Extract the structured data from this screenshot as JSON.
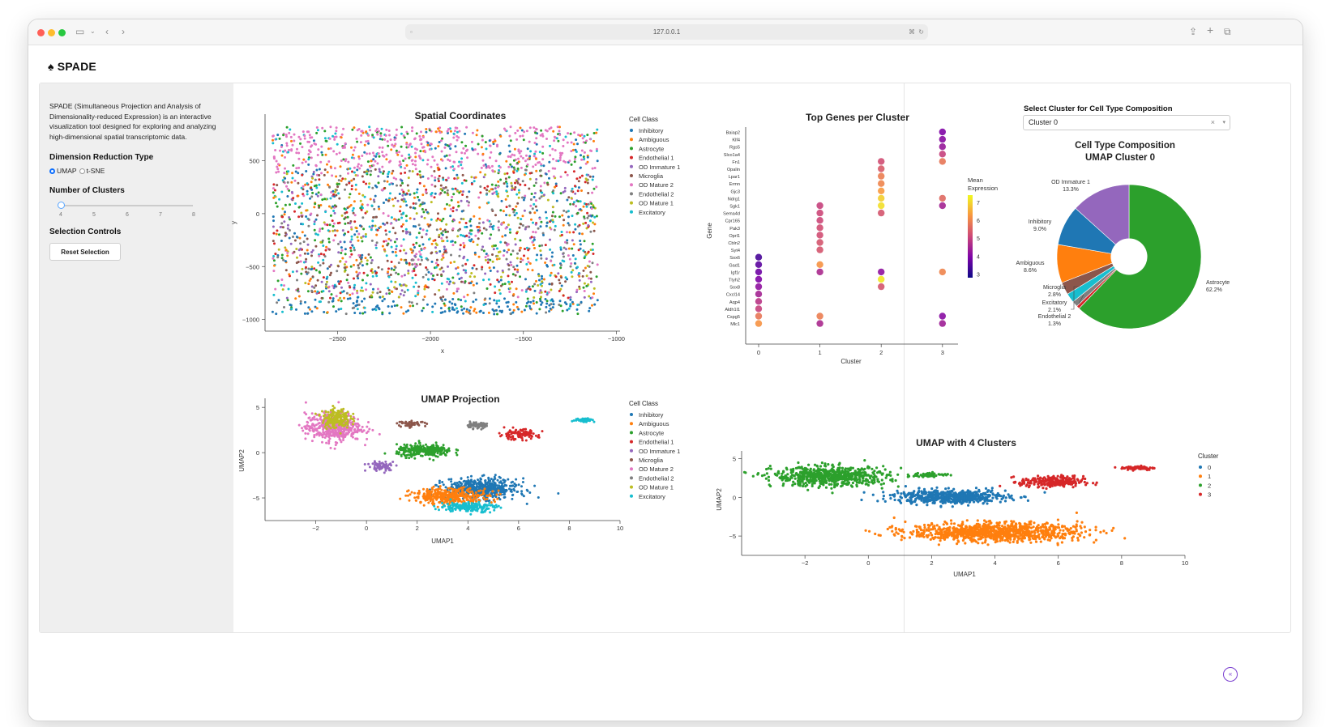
{
  "browser": {
    "url": "127.0.0.1"
  },
  "app": {
    "title": "SPADE"
  },
  "sidebar": {
    "description": "SPADE (Simultaneous Projection and Analysis of Dimensionality-reduced Expression) is an interactive visualization tool designed for exploring and analyzing high-dimensional spatial transcriptomic data.",
    "dim_reduction_title": "Dimension Reduction Type",
    "dim_options": [
      "UMAP",
      "t-SNE"
    ],
    "dim_selected": "UMAP",
    "clusters_title": "Number of Clusters",
    "clusters_ticks": [
      "4",
      "5",
      "6",
      "7",
      "8"
    ],
    "clusters_value": 4,
    "selection_title": "Selection Controls",
    "reset_label": "Reset Selection"
  },
  "cluster_select": {
    "label": "Select Cluster for Cell Type Composition",
    "value": "Cluster 0",
    "clear": "×",
    "chevron": "▾"
  },
  "colors": {
    "Inhibitory": "#1f77b4",
    "Ambiguous": "#ff7f0e",
    "Astrocyte": "#2ca02c",
    "Endothelial 1": "#d62728",
    "OD Immature 1": "#9467bd",
    "Microglia": "#8c564b",
    "OD Mature 2": "#e377c2",
    "Endothelial 2": "#7f7f7f",
    "OD Mature 1": "#bcbd22",
    "Excitatory": "#17becf"
  },
  "chart_data": [
    {
      "id": "spatial",
      "type": "scatter",
      "title": "Spatial Coordinates",
      "xlabel": "x",
      "ylabel": "y",
      "xlim": [
        -2890,
        -980
      ],
      "ylim": [
        -1110,
        940
      ],
      "xticks": [
        -2500,
        -2000,
        -1500,
        -1000
      ],
      "yticks": [
        500,
        0,
        -500,
        -1000
      ],
      "legend_title": "Cell Class",
      "legend": [
        "Inhibitory",
        "Ambiguous",
        "Astrocyte",
        "Endothelial 1",
        "OD Immature 1",
        "Microglia",
        "OD Mature 2",
        "Endothelial 2",
        "OD Mature 1",
        "Excitatory"
      ],
      "legend_position": "right",
      "points": "≈5000 points spread over x -2850 to -1100, y -950 to 820"
    },
    {
      "id": "umap_class",
      "type": "scatter",
      "title": "UMAP Projection",
      "xlabel": "UMAP1",
      "ylabel": "UMAP2",
      "xlim": [
        -4,
        10
      ],
      "ylim": [
        -7.5,
        6
      ],
      "xticks": [
        -2,
        0,
        2,
        4,
        6,
        8,
        10
      ],
      "yticks": [
        5,
        0,
        -5
      ],
      "legend_title": "Cell Class",
      "legend": [
        "Inhibitory",
        "Ambiguous",
        "Astrocyte",
        "Endothelial 1",
        "OD Immature 1",
        "Microglia",
        "OD Mature 2",
        "Endothelial 2",
        "OD Mature 1",
        "Excitatory"
      ],
      "legend_position": "right"
    },
    {
      "id": "dotplot",
      "type": "scatter",
      "title": "Top Genes per Cluster",
      "xlabel": "Cluster",
      "ylabel": "Gene",
      "categories_x": [
        "0",
        "1",
        "2",
        "3"
      ],
      "genes": [
        "Baiap2",
        "Klf4",
        "Rgs5",
        "Slco1a4",
        "Fn1",
        "Opalin",
        "Lpar1",
        "Ermn",
        "Gjc3",
        "Ndrg1",
        "Sgk1",
        "Sema4d",
        "Cpr165",
        "Pak3",
        "Oprl1",
        "Cbln2",
        "Syt4",
        "Sox6",
        "Gad1",
        "Igf1r",
        "Ttyh2",
        "Sox8",
        "Cxcl14",
        "Aqp4",
        "Aldh1l1",
        "Cspg5",
        "Mlc1"
      ],
      "colorbar_title": "Mean Expression",
      "colorbar_ticks": [
        7,
        6,
        5,
        4,
        3
      ],
      "colorbar_range": [
        2.8,
        7.4
      ],
      "points": [
        {
          "cluster": 0,
          "gene": "Sox6",
          "value": 3.4
        },
        {
          "cluster": 0,
          "gene": "Gad1",
          "value": 3.6
        },
        {
          "cluster": 0,
          "gene": "Igf1r",
          "value": 3.8
        },
        {
          "cluster": 0,
          "gene": "Ttyh2",
          "value": 4.0
        },
        {
          "cluster": 0,
          "gene": "Sox8",
          "value": 4.2
        },
        {
          "cluster": 0,
          "gene": "Cxcl14",
          "value": 4.5
        },
        {
          "cluster": 0,
          "gene": "Aqp4",
          "value": 4.8
        },
        {
          "cluster": 0,
          "gene": "Aldh1l1",
          "value": 5.0
        },
        {
          "cluster": 0,
          "gene": "Cspg5",
          "value": 5.8
        },
        {
          "cluster": 0,
          "gene": "Mlc1",
          "value": 6.2
        },
        {
          "cluster": 1,
          "gene": "Sgk1",
          "value": 5.0
        },
        {
          "cluster": 1,
          "gene": "Sema4d",
          "value": 5.1
        },
        {
          "cluster": 1,
          "gene": "Cpr165",
          "value": 5.1
        },
        {
          "cluster": 1,
          "gene": "Pak3",
          "value": 5.2
        },
        {
          "cluster": 1,
          "gene": "Oprl1",
          "value": 5.2
        },
        {
          "cluster": 1,
          "gene": "Cbln2",
          "value": 5.3
        },
        {
          "cluster": 1,
          "gene": "Syt4",
          "value": 5.3
        },
        {
          "cluster": 1,
          "gene": "Gad1",
          "value": 6.2
        },
        {
          "cluster": 1,
          "gene": "Igf1r",
          "value": 4.6
        },
        {
          "cluster": 1,
          "gene": "Cspg5",
          "value": 5.9
        },
        {
          "cluster": 1,
          "gene": "Mlc1",
          "value": 4.6
        },
        {
          "cluster": 2,
          "gene": "Fn1",
          "value": 5.2
        },
        {
          "cluster": 2,
          "gene": "Opalin",
          "value": 5.4
        },
        {
          "cluster": 2,
          "gene": "Lpar1",
          "value": 5.9
        },
        {
          "cluster": 2,
          "gene": "Ermn",
          "value": 6.0
        },
        {
          "cluster": 2,
          "gene": "Gjc3",
          "value": 6.3
        },
        {
          "cluster": 2,
          "gene": "Ndrg1",
          "value": 6.9
        },
        {
          "cluster": 2,
          "gene": "Sgk1",
          "value": 7.1
        },
        {
          "cluster": 2,
          "gene": "Sema4d",
          "value": 5.3
        },
        {
          "cluster": 2,
          "gene": "Igf1r",
          "value": 4.2
        },
        {
          "cluster": 2,
          "gene": "Ttyh2",
          "value": 7.2
        },
        {
          "cluster": 2,
          "gene": "Sox8",
          "value": 5.3
        },
        {
          "cluster": 3,
          "gene": "Baiap2",
          "value": 4.0
        },
        {
          "cluster": 3,
          "gene": "Klf4",
          "value": 4.1
        },
        {
          "cluster": 3,
          "gene": "Rgs5",
          "value": 4.3
        },
        {
          "cluster": 3,
          "gene": "Slco1a4",
          "value": 5.0
        },
        {
          "cluster": 3,
          "gene": "Fn1",
          "value": 5.8
        },
        {
          "cluster": 3,
          "gene": "Ndrg1",
          "value": 5.6
        },
        {
          "cluster": 3,
          "gene": "Sgk1",
          "value": 4.5
        },
        {
          "cluster": 3,
          "gene": "Igf1r",
          "value": 6.0
        },
        {
          "cluster": 3,
          "gene": "Cspg5",
          "value": 4.1
        },
        {
          "cluster": 3,
          "gene": "Mlc1",
          "value": 4.4
        }
      ]
    },
    {
      "id": "pie",
      "type": "pie",
      "title": "Cell Type Composition",
      "subtitle": "UMAP Cluster 0",
      "hole": 0.25,
      "slices": [
        {
          "label": "Astrocyte",
          "value": 62.2,
          "text": "62.2%"
        },
        {
          "label": "Endothelial 1",
          "value": 0.7,
          "text": ""
        },
        {
          "label": "Endothelial 2",
          "value": 1.3,
          "text": "1.3%"
        },
        {
          "label": "Excitatory",
          "value": 2.1,
          "text": "2.1%"
        },
        {
          "label": "Microglia",
          "value": 2.8,
          "text": "2.8%"
        },
        {
          "label": "Ambiguous",
          "value": 8.6,
          "text": "8.6%"
        },
        {
          "label": "Inhibitory",
          "value": 9.0,
          "text": "9.0%"
        },
        {
          "label": "OD Immature 1",
          "value": 13.3,
          "text": "13.3%"
        }
      ]
    },
    {
      "id": "umap_clusters",
      "type": "scatter",
      "title": "UMAP with 4 Clusters",
      "xlabel": "UMAP1",
      "ylabel": "UMAP2",
      "xlim": [
        -4,
        10
      ],
      "ylim": [
        -7.5,
        6
      ],
      "xticks": [
        -2,
        0,
        2,
        4,
        6,
        8,
        10
      ],
      "yticks": [
        5,
        0,
        -5
      ],
      "legend_title": "Cluster",
      "legend": [
        "0",
        "1",
        "2",
        "3"
      ],
      "legend_colors": [
        "#1f77b4",
        "#ff7f0e",
        "#2ca02c",
        "#d62728"
      ],
      "legend_position": "right"
    }
  ]
}
